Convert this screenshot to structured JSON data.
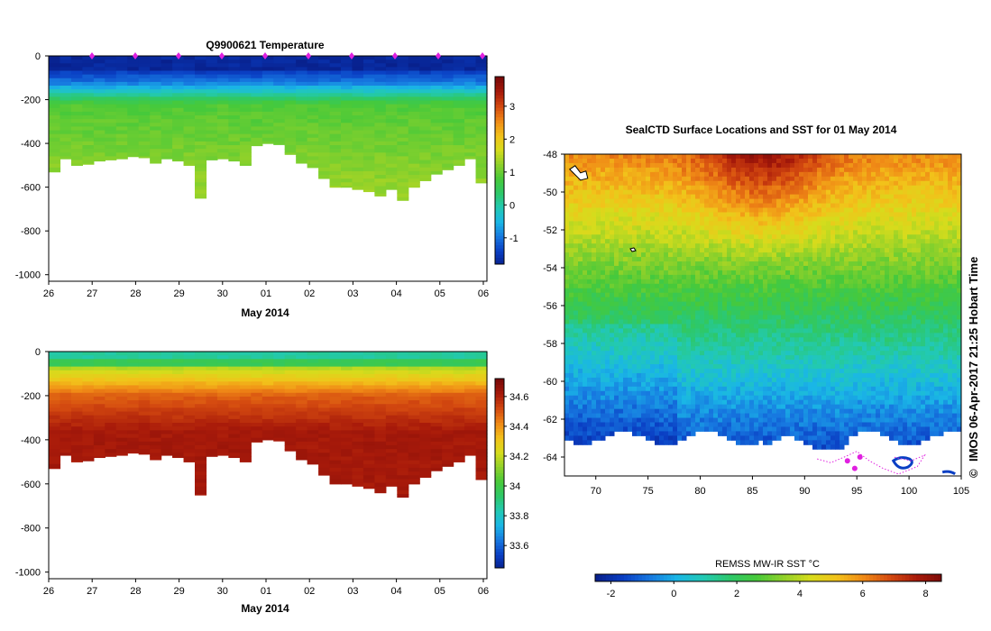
{
  "colors": {
    "background": "#ffffff",
    "ocean_scale": [
      "#08208c",
      "#0a3fc4",
      "#1778e0",
      "#1ab6e6",
      "#22c9b4",
      "#2dc86a",
      "#47c93a",
      "#8fd12a",
      "#d6dc1c",
      "#f2c21a",
      "#f08a16",
      "#d44a10",
      "#a81a0a",
      "#7a0a08"
    ],
    "profile_marker": "#e020e0",
    "track": "#e020e0"
  },
  "chart_data": [
    {
      "id": "temperature-section",
      "type": "heatmap",
      "title": "Q9900621  Temperature",
      "xlabel": "May 2014",
      "x_tick_labels": [
        "26",
        "27",
        "28",
        "29",
        "30",
        "01",
        "02",
        "03",
        "04",
        "05",
        "06"
      ],
      "y_ticks": [
        0,
        -200,
        -400,
        -600,
        -800,
        -1000
      ],
      "ylim": [
        -1030,
        0
      ],
      "profile_max_depth_m": [
        530,
        470,
        500,
        495,
        480,
        475,
        470,
        460,
        465,
        490,
        470,
        480,
        500,
        650,
        475,
        470,
        480,
        500,
        410,
        400,
        405,
        450,
        490,
        510,
        560,
        600,
        600,
        610,
        620,
        640,
        610,
        660,
        600,
        570,
        540,
        520,
        500,
        470,
        580
      ],
      "colorbar": {
        "ticks": [
          "3",
          "2",
          "1",
          "0",
          "-1"
        ],
        "range": [
          -1.8,
          3.9
        ]
      }
    },
    {
      "id": "salinity-section",
      "type": "heatmap",
      "title": "",
      "xlabel": "May 2014",
      "x_tick_labels": [
        "26",
        "27",
        "28",
        "29",
        "30",
        "01",
        "02",
        "03",
        "04",
        "05",
        "06"
      ],
      "y_ticks": [
        0,
        -200,
        -400,
        -600,
        -800,
        -1000
      ],
      "ylim": [
        -1030,
        0
      ],
      "profile_max_depth_m": [
        530,
        470,
        500,
        495,
        480,
        475,
        470,
        460,
        465,
        490,
        470,
        480,
        500,
        650,
        475,
        470,
        480,
        500,
        410,
        400,
        405,
        450,
        490,
        510,
        560,
        600,
        600,
        610,
        620,
        640,
        610,
        660,
        600,
        570,
        540,
        520,
        500,
        470,
        580
      ],
      "colorbar": {
        "ticks": [
          "34.6",
          "34.4",
          "34.2",
          "34",
          "33.8",
          "33.6"
        ],
        "range": [
          33.45,
          34.72
        ]
      }
    },
    {
      "id": "sst-map",
      "type": "heatmap",
      "title": "SealCTD Surface Locations and SST for 01 May 2014",
      "x_tick_labels": [
        "70",
        "75",
        "80",
        "85",
        "90",
        "95",
        "100",
        "105"
      ],
      "y_tick_labels": [
        "-48",
        "-50",
        "-52",
        "-54",
        "-56",
        "-58",
        "-60",
        "-62",
        "-64"
      ],
      "xlim": [
        67,
        105
      ],
      "ylim": [
        -65,
        -48
      ],
      "colorbar": {
        "label": "REMSS MW-IR SST °C",
        "ticks": [
          "-2",
          "0",
          "2",
          "4",
          "6",
          "8"
        ],
        "range": [
          -2.5,
          8.5
        ]
      }
    }
  ],
  "credit": "IMOS 06-Apr-2017 21:25 Hobart Time",
  "copyright_symbol": "©"
}
